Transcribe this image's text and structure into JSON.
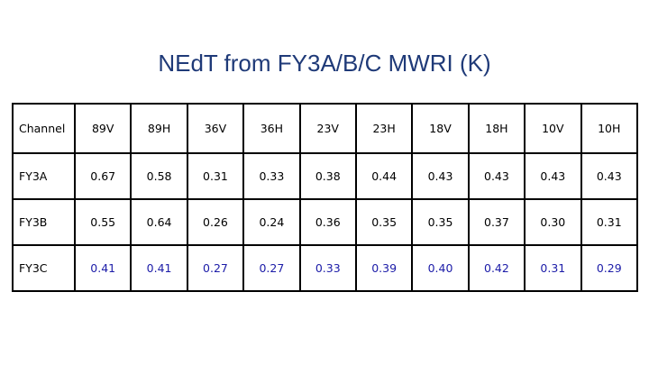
{
  "title": "NEdT from FY3A/B/C MWRI (K)",
  "table": {
    "header": [
      "Channel",
      "89V",
      "89H",
      "36V",
      "36H",
      "23V",
      "23H",
      "18V",
      "18H",
      "10V",
      "10H"
    ],
    "rows": [
      {
        "label": "FY3A",
        "values": [
          "0.67",
          "0.58",
          "0.31",
          "0.33",
          "0.38",
          "0.44",
          "0.43",
          "0.43",
          "0.43",
          "0.43"
        ],
        "color": "#000000"
      },
      {
        "label": "FY3B",
        "values": [
          "0.55",
          "0.64",
          "0.26",
          "0.24",
          "0.36",
          "0.35",
          "0.35",
          "0.37",
          "0.30",
          "0.31"
        ],
        "color": "#000000"
      },
      {
        "label": "FY3C",
        "values": [
          "0.41",
          "0.41",
          "0.27",
          "0.27",
          "0.33",
          "0.39",
          "0.40",
          "0.42",
          "0.31",
          "0.29"
        ],
        "color": "#1c1ca8"
      }
    ]
  }
}
